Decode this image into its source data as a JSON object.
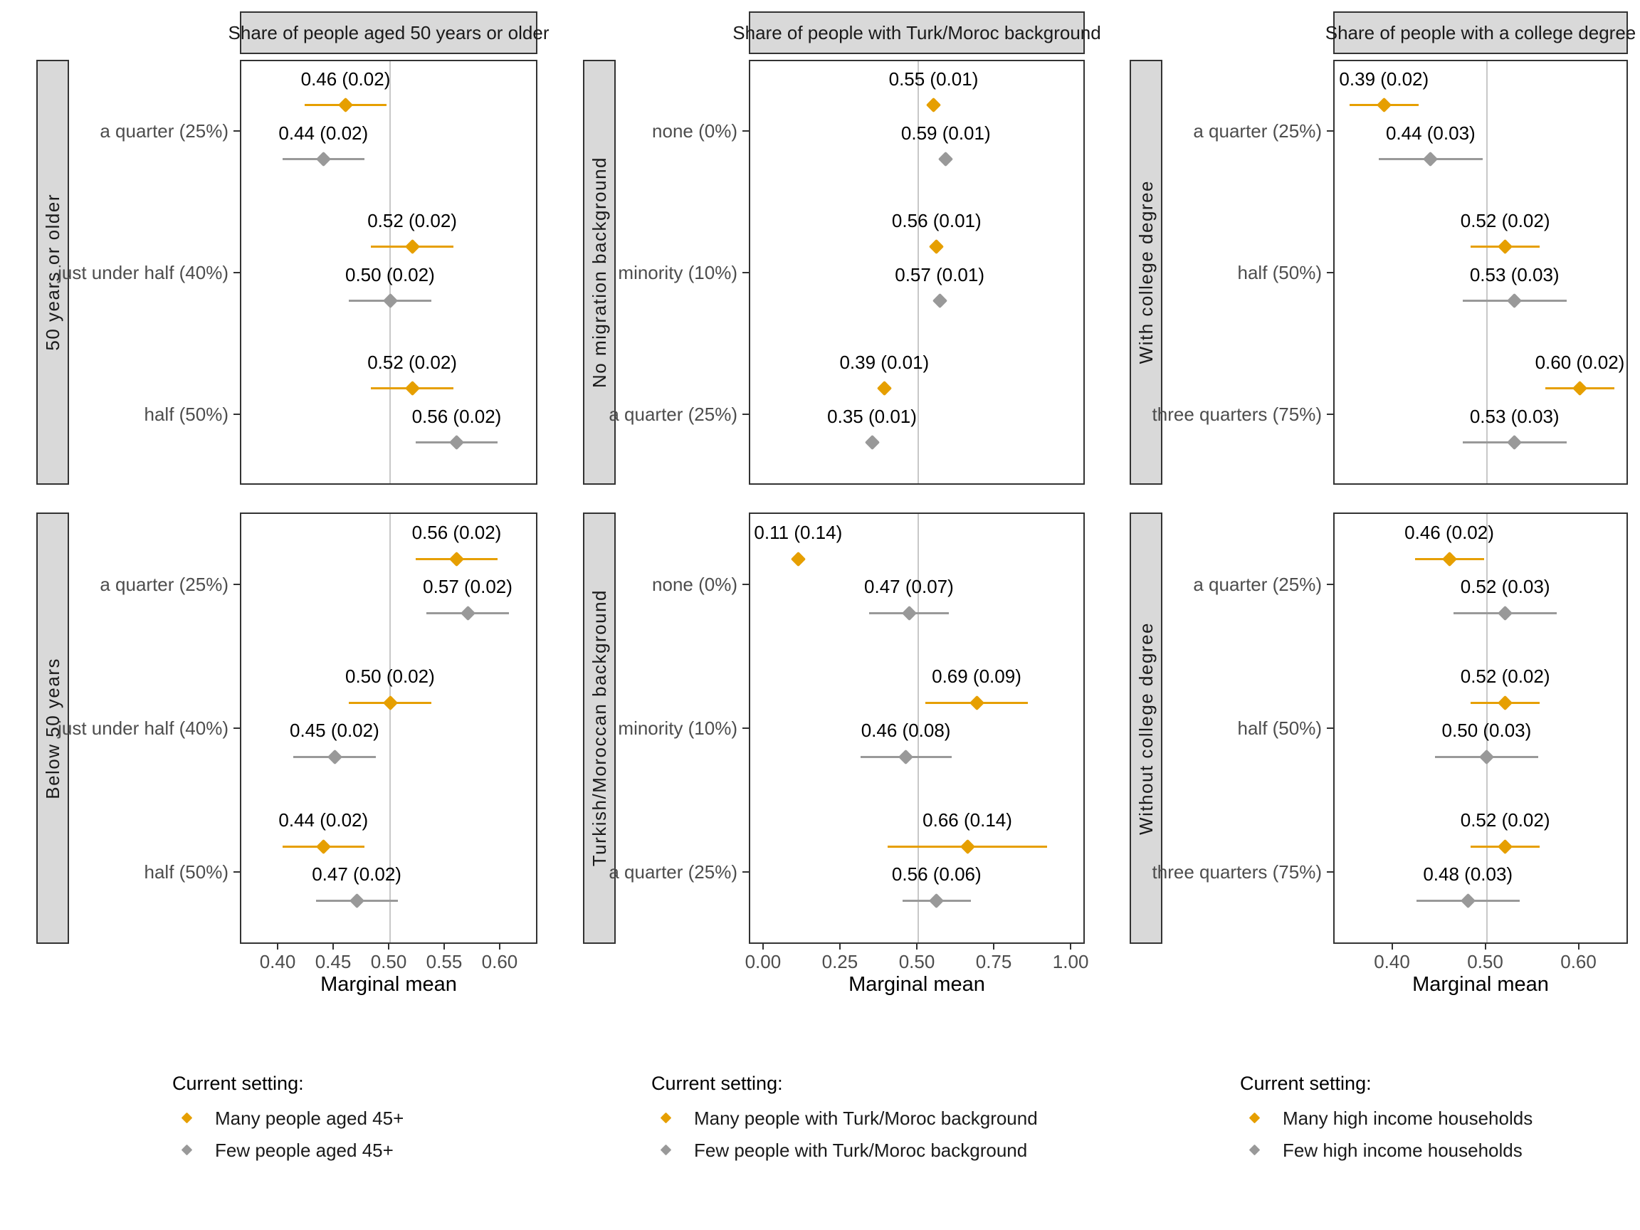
{
  "colors": {
    "accent_orange": "#E69F00",
    "muted_gray": "#999999",
    "reference_line": "#C8C8C8",
    "strip_fill": "#D9D9D9",
    "panel_border": "#333333",
    "axis_text": "#4D4D4D",
    "strip_text": "#1A1A1A",
    "label_text": "#000000",
    "background": "#FFFFFF"
  },
  "chart_data": [
    {
      "type": "scatter",
      "title": "Share of people aged 50 years or older",
      "xlabel": "Marginal mean",
      "legend_title": "Current setting:",
      "legend_position": "bottom",
      "grid": false,
      "ref_line_x": 0.5,
      "xlim": [
        0.366,
        0.634
      ],
      "x_tick_values": [
        0.4,
        0.45,
        0.5,
        0.55,
        0.6
      ],
      "x_tick_labels": [
        "0.40",
        "0.45",
        "0.50",
        "0.55",
        "0.60"
      ],
      "categories": [
        "a quarter (25%)",
        "just under half (40%)",
        "half (50%)"
      ],
      "series": [
        {
          "name": "Many people aged 45+",
          "color_key": "accent_orange"
        },
        {
          "name": "Few people aged 45+",
          "color_key": "muted_gray"
        }
      ],
      "facets": [
        {
          "label": "50 years or older",
          "points": [
            {
              "series": 0,
              "category": 0,
              "value": 0.46,
              "se": 0.02,
              "label": "0.46 (0.02)"
            },
            {
              "series": 1,
              "category": 0,
              "value": 0.44,
              "se": 0.02,
              "label": "0.44 (0.02)"
            },
            {
              "series": 0,
              "category": 1,
              "value": 0.52,
              "se": 0.02,
              "label": "0.52 (0.02)"
            },
            {
              "series": 1,
              "category": 1,
              "value": 0.5,
              "se": 0.02,
              "label": "0.50 (0.02)"
            },
            {
              "series": 0,
              "category": 2,
              "value": 0.52,
              "se": 0.02,
              "label": "0.52 (0.02)"
            },
            {
              "series": 1,
              "category": 2,
              "value": 0.56,
              "se": 0.02,
              "label": "0.56 (0.02)"
            }
          ]
        },
        {
          "label": "Below 50 years",
          "points": [
            {
              "series": 0,
              "category": 0,
              "value": 0.56,
              "se": 0.02,
              "label": "0.56 (0.02)"
            },
            {
              "series": 1,
              "category": 0,
              "value": 0.57,
              "se": 0.02,
              "label": "0.57 (0.02)"
            },
            {
              "series": 0,
              "category": 1,
              "value": 0.5,
              "se": 0.02,
              "label": "0.50 (0.02)"
            },
            {
              "series": 1,
              "category": 1,
              "value": 0.45,
              "se": 0.02,
              "label": "0.45 (0.02)"
            },
            {
              "series": 0,
              "category": 2,
              "value": 0.44,
              "se": 0.02,
              "label": "0.44 (0.02)"
            },
            {
              "series": 1,
              "category": 2,
              "value": 0.47,
              "se": 0.02,
              "label": "0.47 (0.02)"
            }
          ]
        }
      ]
    },
    {
      "type": "scatter",
      "title": "Share of people with Turk/Moroc background",
      "xlabel": "Marginal mean",
      "legend_title": "Current setting:",
      "legend_position": "bottom",
      "grid": false,
      "ref_line_x": 0.5,
      "xlim": [
        -0.046,
        1.046
      ],
      "x_tick_values": [
        0.0,
        0.25,
        0.5,
        0.75,
        1.0
      ],
      "x_tick_labels": [
        "0.00",
        "0.25",
        "0.50",
        "0.75",
        "1.00"
      ],
      "categories": [
        "none (0%)",
        "minority (10%)",
        "a quarter (25%)"
      ],
      "series": [
        {
          "name": "Many people with Turk/Moroc background",
          "color_key": "accent_orange"
        },
        {
          "name": "Few people with Turk/Moroc background",
          "color_key": "muted_gray"
        }
      ],
      "facets": [
        {
          "label": "No migration background",
          "points": [
            {
              "series": 0,
              "category": 0,
              "value": 0.55,
              "se": 0.01,
              "label": "0.55 (0.01)"
            },
            {
              "series": 1,
              "category": 0,
              "value": 0.59,
              "se": 0.01,
              "label": "0.59 (0.01)"
            },
            {
              "series": 0,
              "category": 1,
              "value": 0.56,
              "se": 0.01,
              "label": "0.56 (0.01)"
            },
            {
              "series": 1,
              "category": 1,
              "value": 0.57,
              "se": 0.01,
              "label": "0.57 (0.01)"
            },
            {
              "series": 0,
              "category": 2,
              "value": 0.39,
              "se": 0.01,
              "label": "0.39 (0.01)"
            },
            {
              "series": 1,
              "category": 2,
              "value": 0.35,
              "se": 0.01,
              "label": "0.35 (0.01)"
            }
          ]
        },
        {
          "label": "Turkish/Moroccan background",
          "points": [
            {
              "series": 0,
              "category": 0,
              "value": 0.11,
              "se": 0.14,
              "label": "0.11 (0.14)",
              "bar": false
            },
            {
              "series": 1,
              "category": 0,
              "value": 0.47,
              "se": 0.07,
              "label": "0.47 (0.07)"
            },
            {
              "series": 0,
              "category": 1,
              "value": 0.69,
              "se": 0.09,
              "label": "0.69 (0.09)"
            },
            {
              "series": 1,
              "category": 1,
              "value": 0.46,
              "se": 0.08,
              "label": "0.46 (0.08)"
            },
            {
              "series": 0,
              "category": 2,
              "value": 0.66,
              "se": 0.14,
              "label": "0.66 (0.14)"
            },
            {
              "series": 1,
              "category": 2,
              "value": 0.56,
              "se": 0.06,
              "label": "0.56 (0.06)"
            }
          ]
        }
      ]
    },
    {
      "type": "scatter",
      "title": "Share of people with a college degree",
      "xlabel": "Marginal mean",
      "legend_title": "Current setting:",
      "legend_position": "bottom",
      "grid": false,
      "ref_line_x": 0.5,
      "xlim": [
        0.337,
        0.653
      ],
      "x_tick_values": [
        0.4,
        0.5,
        0.6
      ],
      "x_tick_labels": [
        "0.40",
        "0.50",
        "0.60"
      ],
      "categories": [
        "a quarter (25%)",
        "half (50%)",
        "three quarters (75%)"
      ],
      "series": [
        {
          "name": "Many high income households",
          "color_key": "accent_orange"
        },
        {
          "name": "Few high income households",
          "color_key": "muted_gray"
        }
      ],
      "facets": [
        {
          "label": "With college degree",
          "points": [
            {
              "series": 0,
              "category": 0,
              "value": 0.39,
              "se": 0.02,
              "label": "0.39 (0.02)"
            },
            {
              "series": 1,
              "category": 0,
              "value": 0.44,
              "se": 0.03,
              "label": "0.44 (0.03)"
            },
            {
              "series": 0,
              "category": 1,
              "value": 0.52,
              "se": 0.02,
              "label": "0.52 (0.02)"
            },
            {
              "series": 1,
              "category": 1,
              "value": 0.53,
              "se": 0.03,
              "label": "0.53 (0.03)"
            },
            {
              "series": 0,
              "category": 2,
              "value": 0.6,
              "se": 0.02,
              "label": "0.60 (0.02)"
            },
            {
              "series": 1,
              "category": 2,
              "value": 0.53,
              "se": 0.03,
              "label": "0.53 (0.03)"
            }
          ]
        },
        {
          "label": "Without college degree",
          "points": [
            {
              "series": 0,
              "category": 0,
              "value": 0.46,
              "se": 0.02,
              "label": "0.46 (0.02)"
            },
            {
              "series": 1,
              "category": 0,
              "value": 0.52,
              "se": 0.03,
              "label": "0.52 (0.03)"
            },
            {
              "series": 0,
              "category": 1,
              "value": 0.52,
              "se": 0.02,
              "label": "0.52 (0.02)"
            },
            {
              "series": 1,
              "category": 1,
              "value": 0.5,
              "se": 0.03,
              "label": "0.50 (0.03)"
            },
            {
              "series": 0,
              "category": 2,
              "value": 0.52,
              "se": 0.02,
              "label": "0.52 (0.02)"
            },
            {
              "series": 1,
              "category": 2,
              "value": 0.48,
              "se": 0.03,
              "label": "0.48 (0.03)"
            }
          ]
        }
      ]
    }
  ]
}
